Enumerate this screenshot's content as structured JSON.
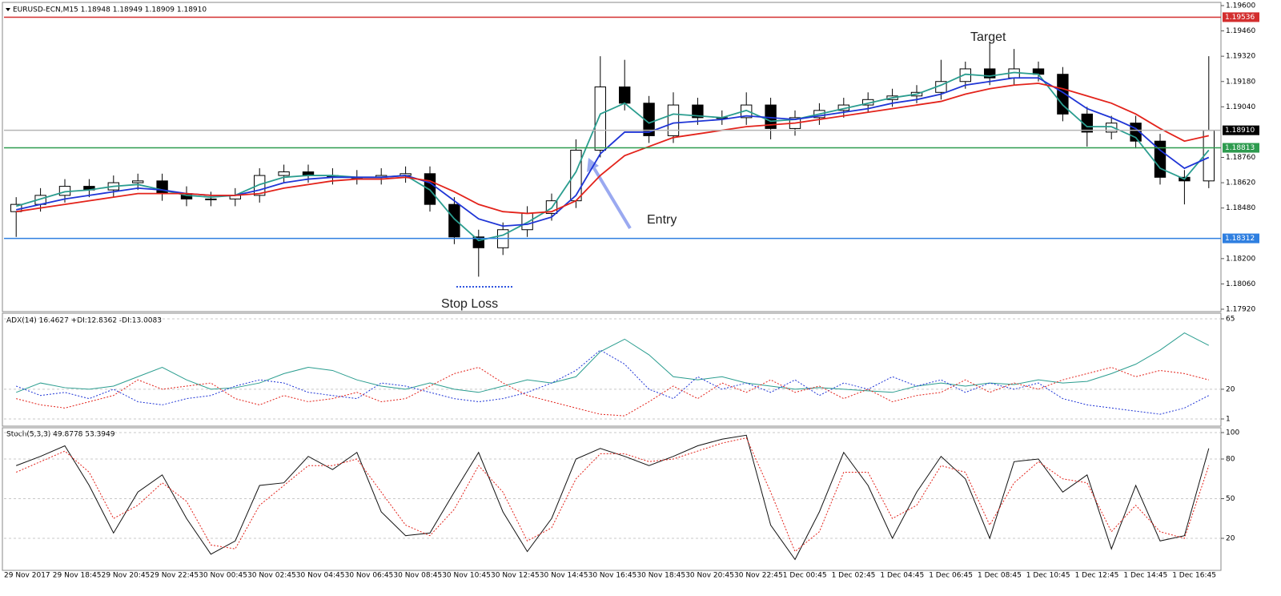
{
  "chart_data": [
    {
      "type": "candlestick",
      "title": "EURUSD-ECN,M15  1.18948 1.18949 1.18909 1.18910",
      "categories": [
        "29 Nov 2017",
        null,
        "29 Nov 18:45",
        null,
        "29 Nov 20:45",
        null,
        "29 Nov 22:45",
        null,
        "30 Nov 00:45",
        null,
        "30 Nov 02:45",
        null,
        "30 Nov 04:45",
        null,
        "30 Nov 06:45",
        null,
        "30 Nov 08:45",
        null,
        "30 Nov 10:45",
        null,
        "30 Nov 12:45",
        null,
        "30 Nov 14:45",
        null,
        "30 Nov 16:45",
        null,
        "30 Nov 18:45",
        null,
        "30 Nov 20:45",
        null,
        "30 Nov 22:45",
        null,
        "1 Dec 00:45",
        null,
        "1 Dec 02:45",
        null,
        "1 Dec 04:45",
        null,
        "1 Dec 06:45",
        null,
        "1 Dec 08:45",
        null,
        "1 Dec 10:45",
        null,
        "1 Dec 12:45",
        null,
        "1 Dec 14:45",
        null,
        "1 Dec 16:45",
        null
      ],
      "open": [
        1.1846,
        1.185,
        1.1855,
        1.186,
        1.1858,
        1.1862,
        1.1863,
        1.1856,
        1.1853,
        1.1853,
        1.1855,
        1.1866,
        1.1868,
        1.1866,
        1.1865,
        1.1865,
        1.1866,
        1.1867,
        1.185,
        1.1832,
        1.1826,
        1.1836,
        1.1845,
        1.1852,
        1.188,
        1.1915,
        1.1906,
        1.1888,
        1.1905,
        1.1898,
        1.1898,
        1.1905,
        1.1892,
        1.1898,
        1.1902,
        1.1905,
        1.1908,
        1.191,
        1.1912,
        1.1918,
        1.1925,
        1.192,
        1.1925,
        1.1922,
        1.19,
        1.189,
        1.1895,
        1.1885,
        1.1865,
        1.1863
      ],
      "high": [
        1.1854,
        1.1859,
        1.1864,
        1.1864,
        1.1866,
        1.1867,
        1.1867,
        1.186,
        1.1857,
        1.1859,
        1.187,
        1.1872,
        1.1872,
        1.187,
        1.1869,
        1.187,
        1.1871,
        1.1871,
        1.1854,
        1.1836,
        1.184,
        1.1849,
        1.1856,
        1.1886,
        1.1932,
        1.193,
        1.191,
        1.1912,
        1.1909,
        1.1902,
        1.1912,
        1.1909,
        1.1902,
        1.1906,
        1.1909,
        1.1912,
        1.1914,
        1.1916,
        1.193,
        1.1929,
        1.194,
        1.1936,
        1.1929,
        1.1926,
        1.1904,
        1.1899,
        1.1899,
        1.1889,
        1.1869,
        1.1932
      ],
      "low": [
        1.1832,
        1.1846,
        1.1851,
        1.1854,
        1.1854,
        1.1858,
        1.1852,
        1.1849,
        1.1849,
        1.1849,
        1.1851,
        1.1862,
        1.1862,
        1.1861,
        1.1861,
        1.1861,
        1.1862,
        1.1846,
        1.1828,
        1.181,
        1.1822,
        1.1832,
        1.1841,
        1.1848,
        1.1876,
        1.1902,
        1.1884,
        1.1884,
        1.1894,
        1.1894,
        1.1894,
        1.1886,
        1.1888,
        1.1894,
        1.1898,
        1.1901,
        1.1904,
        1.1906,
        1.1908,
        1.1914,
        1.1916,
        1.1916,
        1.1918,
        1.1896,
        1.1882,
        1.1886,
        1.1881,
        1.1861,
        1.185,
        1.1859
      ],
      "close": [
        1.185,
        1.1855,
        1.186,
        1.1858,
        1.1862,
        1.1863,
        1.1856,
        1.1853,
        1.1853,
        1.1855,
        1.1866,
        1.1868,
        1.1866,
        1.1865,
        1.1865,
        1.1866,
        1.1867,
        1.185,
        1.1832,
        1.1826,
        1.1836,
        1.1845,
        1.1852,
        1.188,
        1.1915,
        1.1906,
        1.1888,
        1.1905,
        1.1898,
        1.1898,
        1.1905,
        1.1892,
        1.1898,
        1.1902,
        1.1905,
        1.1908,
        1.191,
        1.1912,
        1.1918,
        1.1925,
        1.192,
        1.1925,
        1.1922,
        1.19,
        1.189,
        1.1895,
        1.1885,
        1.1865,
        1.1863,
        1.1891
      ],
      "series": [
        {
          "color": "#2a9d8f",
          "values": [
            1.1849,
            1.1853,
            1.1857,
            1.1858,
            1.186,
            1.1861,
            1.1858,
            1.1855,
            1.1854,
            1.1855,
            1.1861,
            1.1865,
            1.1866,
            1.1866,
            1.1865,
            1.1865,
            1.1866,
            1.1858,
            1.1842,
            1.183,
            1.1833,
            1.184,
            1.1848,
            1.1868,
            1.19,
            1.1906,
            1.1895,
            1.19,
            1.1899,
            1.1898,
            1.1902,
            1.1896,
            1.1897,
            1.19,
            1.1903,
            1.1906,
            1.1909,
            1.1911,
            1.1916,
            1.1922,
            1.1921,
            1.1923,
            1.1922,
            1.1905,
            1.1893,
            1.1893,
            1.1887,
            1.187,
            1.1864,
            1.188
          ]
        },
        {
          "color": "#1f35d6",
          "values": [
            1.1847,
            1.185,
            1.1853,
            1.1855,
            1.1857,
            1.1859,
            1.1858,
            1.1856,
            1.1855,
            1.1855,
            1.1858,
            1.1862,
            1.1864,
            1.1865,
            1.1865,
            1.1865,
            1.1866,
            1.1862,
            1.1852,
            1.1842,
            1.1838,
            1.1839,
            1.1843,
            1.1855,
            1.1878,
            1.189,
            1.189,
            1.1895,
            1.1896,
            1.1897,
            1.1899,
            1.1898,
            1.1897,
            1.1899,
            1.1901,
            1.1903,
            1.1906,
            1.1908,
            1.1911,
            1.1916,
            1.1918,
            1.192,
            1.192,
            1.1912,
            1.1903,
            1.1898,
            1.1892,
            1.188,
            1.187,
            1.1876
          ]
        },
        {
          "color": "#e3231b",
          "values": [
            1.1846,
            1.1848,
            1.185,
            1.1852,
            1.1854,
            1.1856,
            1.1856,
            1.1856,
            1.1855,
            1.1855,
            1.1856,
            1.1859,
            1.1861,
            1.1863,
            1.1864,
            1.1864,
            1.1865,
            1.1863,
            1.1857,
            1.185,
            1.1846,
            1.1845,
            1.1846,
            1.1852,
            1.1866,
            1.1877,
            1.1882,
            1.1887,
            1.1889,
            1.1891,
            1.1893,
            1.1894,
            1.1895,
            1.1897,
            1.1899,
            1.1901,
            1.1903,
            1.1905,
            1.1907,
            1.1911,
            1.1914,
            1.1916,
            1.1917,
            1.1914,
            1.191,
            1.1906,
            1.19,
            1.1892,
            1.1885,
            1.1888
          ]
        }
      ],
      "levels": [
        {
          "value": 1.19536,
          "label": "1.19536",
          "color": "#d32f2f",
          "line_color": "#d32f2f"
        },
        {
          "value": 1.1891,
          "label": "1.18910",
          "color": "#000000",
          "line_color": "#b5b5b5"
        },
        {
          "value": 1.18813,
          "label": "1.18813",
          "color": "#2e9b4f",
          "line_color": "#2e9b4f"
        },
        {
          "value": 1.18312,
          "label": "1.18312",
          "color": "#2f7fe0",
          "line_color": "#2f7fe0"
        }
      ],
      "annotations": [
        "Target",
        "Entry",
        "Stop Loss"
      ],
      "ylim": [
        1.1792,
        1.196
      ],
      "yticks": [
        {
          "value": 1.196,
          "label": "1.19600"
        },
        {
          "value": 1.1946,
          "label": "1.19460"
        },
        {
          "value": 1.1932,
          "label": "1.19320"
        },
        {
          "value": 1.1918,
          "label": "1.19180"
        },
        {
          "value": 1.1904,
          "label": "1.19040"
        },
        {
          "value": 1.1876,
          "label": "1.18760"
        },
        {
          "value": 1.1862,
          "label": "1.18620"
        },
        {
          "value": 1.1848,
          "label": "1.18480"
        },
        {
          "value": 1.182,
          "label": "1.18200"
        },
        {
          "value": 1.1806,
          "label": "1.18060"
        },
        {
          "value": 1.1792,
          "label": "1.17920"
        }
      ]
    },
    {
      "type": "line",
      "title": "ADX(14) 16.4627 +DI:12.8362 -DI:13.0083",
      "series": [
        {
          "color": "#2a9d8f",
          "dash": false,
          "values": [
            18,
            24,
            21,
            20,
            22,
            28,
            34,
            26,
            20,
            21,
            24,
            30,
            34,
            32,
            26,
            22,
            20,
            24,
            20,
            18,
            22,
            26,
            24,
            28,
            44,
            52,
            42,
            28,
            26,
            28,
            24,
            22,
            20,
            21,
            20,
            19,
            18,
            22,
            24,
            22,
            24,
            23,
            26,
            24,
            25,
            30,
            36,
            45,
            56,
            48
          ]
        },
        {
          "color": "#1f35d6",
          "dash": true,
          "values": [
            22,
            16,
            18,
            14,
            20,
            12,
            10,
            14,
            16,
            22,
            26,
            24,
            18,
            16,
            14,
            24,
            22,
            18,
            14,
            12,
            14,
            18,
            24,
            32,
            45,
            36,
            20,
            14,
            28,
            20,
            24,
            18,
            26,
            16,
            24,
            20,
            28,
            22,
            26,
            18,
            24,
            20,
            24,
            14,
            10,
            8,
            6,
            4,
            8,
            16
          ]
        },
        {
          "color": "#e3231b",
          "dash": true,
          "values": [
            14,
            10,
            8,
            12,
            16,
            26,
            20,
            22,
            24,
            14,
            10,
            16,
            12,
            14,
            18,
            12,
            14,
            22,
            30,
            34,
            24,
            16,
            12,
            8,
            4,
            3,
            12,
            22,
            14,
            24,
            18,
            26,
            18,
            22,
            14,
            20,
            12,
            16,
            18,
            26,
            18,
            24,
            20,
            26,
            30,
            34,
            28,
            32,
            30,
            26
          ]
        }
      ],
      "ylim": [
        1,
        65
      ],
      "yticks": [
        65,
        20,
        1
      ]
    },
    {
      "type": "line",
      "title": "Stoch(5,3,3) 49.8778 53.3949",
      "series": [
        {
          "color": "#111111",
          "dash": false,
          "values": [
            75,
            82,
            90,
            60,
            24,
            55,
            68,
            35,
            8,
            18,
            60,
            62,
            82,
            72,
            85,
            40,
            22,
            24,
            55,
            85,
            40,
            10,
            35,
            80,
            88,
            82,
            75,
            82,
            90,
            95,
            98,
            30,
            4,
            40,
            85,
            60,
            20,
            55,
            82,
            65,
            20,
            78,
            80,
            55,
            68,
            12,
            60,
            18,
            22,
            88
          ]
        },
        {
          "color": "#e3231b",
          "dash": true,
          "values": [
            70,
            78,
            86,
            70,
            35,
            45,
            62,
            48,
            15,
            12,
            45,
            60,
            75,
            75,
            80,
            55,
            30,
            22,
            42,
            75,
            55,
            18,
            28,
            65,
            84,
            84,
            78,
            80,
            86,
            92,
            96,
            55,
            10,
            25,
            70,
            70,
            35,
            45,
            75,
            70,
            30,
            62,
            78,
            65,
            62,
            25,
            45,
            25,
            20,
            75
          ]
        }
      ],
      "ylim": [
        0,
        100
      ],
      "yticks": [
        100,
        80,
        50,
        20
      ]
    }
  ]
}
